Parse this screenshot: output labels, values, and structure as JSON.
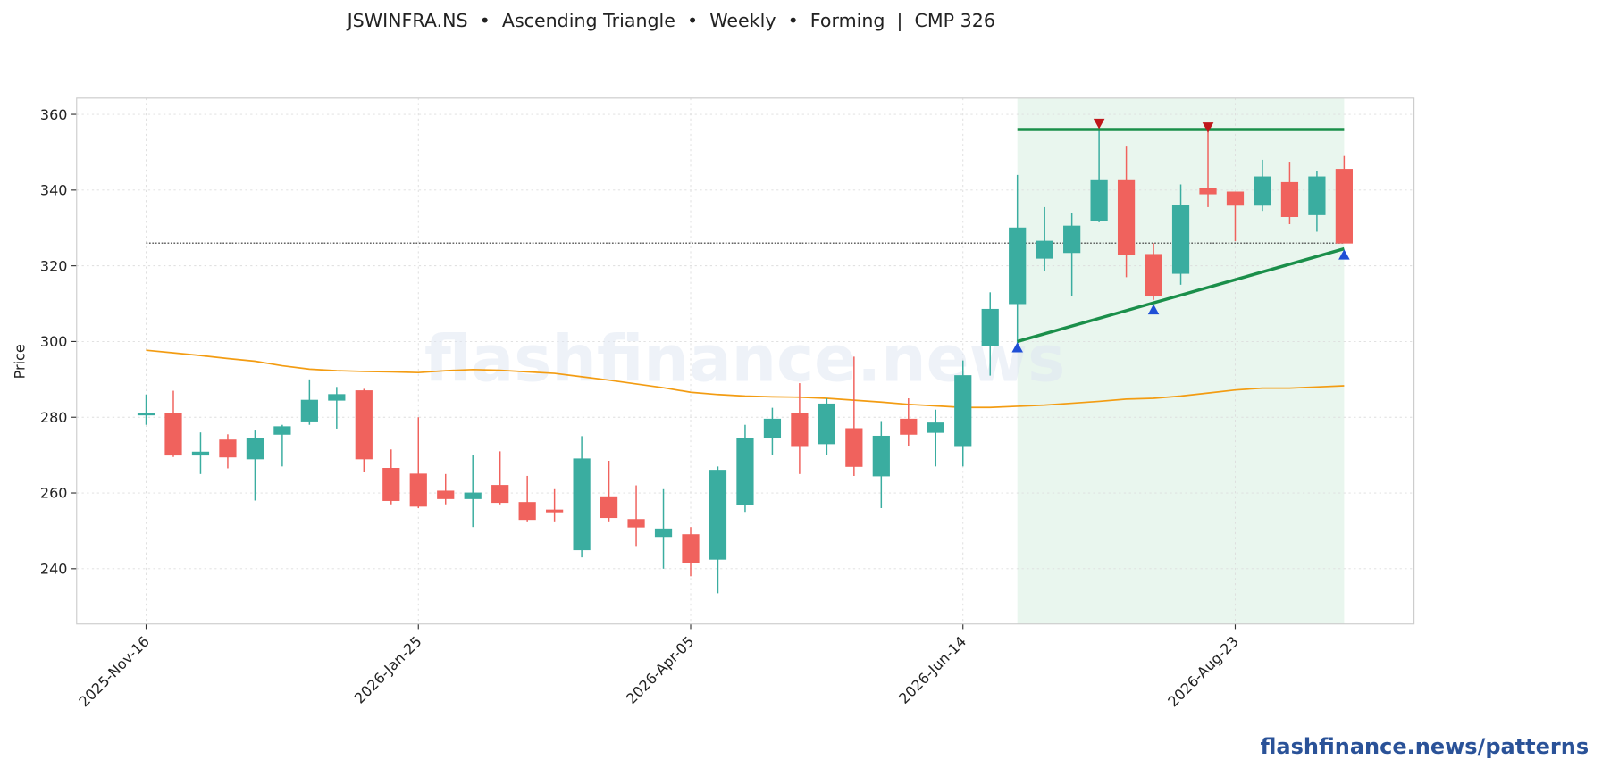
{
  "chart_data": {
    "type": "candlestick",
    "title": "JSWINFRA.NS  •  Ascending Triangle  •  Weekly  •  Forming  |  CMP 326",
    "ylabel": "Price",
    "watermark": "flashfinance.news",
    "footer": "flashfinance.news/patterns",
    "categories": [
      "2025-Nov-16",
      null,
      null,
      null,
      null,
      null,
      null,
      null,
      null,
      null,
      "2026-Jan-25",
      null,
      null,
      null,
      null,
      null,
      null,
      null,
      null,
      null,
      "2026-Apr-05",
      null,
      null,
      null,
      null,
      null,
      null,
      null,
      null,
      null,
      "2026-Jun-14",
      null,
      null,
      null,
      null,
      null,
      null,
      null,
      null,
      null,
      "2026-Aug-23",
      null,
      null,
      null,
      null
    ],
    "open": [
      280.6,
      281,
      270,
      274,
      269,
      275.5,
      279,
      284.5,
      287,
      266.5,
      265,
      260.5,
      258.5,
      262,
      257.5,
      255.5,
      245,
      259,
      253,
      248.5,
      249,
      242.5,
      257,
      274.5,
      281,
      273,
      277,
      264.5,
      279.5,
      276,
      272.5,
      299,
      310,
      322,
      323.5,
      332,
      342.5,
      323,
      318,
      340.5,
      339.5,
      336,
      342,
      333.5,
      345.5
    ],
    "high": [
      286,
      287,
      276,
      275.5,
      276.5,
      278,
      290,
      288,
      287.5,
      271.5,
      280,
      265,
      270,
      271,
      264.5,
      261,
      275,
      268.5,
      262,
      261,
      251,
      267,
      278,
      282.5,
      289,
      285,
      296,
      279,
      285,
      282,
      295,
      313,
      344,
      335.5,
      334,
      357,
      351.5,
      326,
      341.5,
      356,
      339.5,
      348,
      347.5,
      345,
      349
    ],
    "low": [
      278,
      269.5,
      265,
      266.5,
      258,
      267,
      278,
      277,
      265.5,
      257,
      256,
      257,
      251,
      257,
      252.5,
      252.5,
      243,
      252.5,
      246,
      240,
      238,
      233.5,
      255,
      270,
      265,
      270,
      264.5,
      256,
      272.5,
      267,
      267,
      291,
      299,
      318.5,
      312,
      331.5,
      317,
      311,
      315,
      335.5,
      326.5,
      334.5,
      331,
      329,
      326
    ],
    "close": [
      281,
      270,
      270.8,
      269.5,
      274.5,
      277.5,
      284.5,
      286,
      269,
      258,
      256.5,
      258.5,
      260,
      257.5,
      253,
      255,
      269,
      253.5,
      251,
      250.5,
      241.5,
      266,
      274.5,
      279.5,
      272.5,
      283.5,
      267,
      275,
      275.5,
      278.5,
      291,
      308.5,
      330,
      326.5,
      330.5,
      342.5,
      323,
      312,
      336,
      339,
      336,
      343.5,
      333,
      343.5,
      326
    ],
    "up_color": "#3aada0",
    "down_color": "#f0625d",
    "moving_average": {
      "color": "#f39c12",
      "values": [
        297.7,
        297,
        296.3,
        295.5,
        294.8,
        293.6,
        292.7,
        292.3,
        292.1,
        292,
        291.8,
        292.3,
        292.6,
        292.4,
        292,
        291.6,
        290.7,
        289.8,
        288.8,
        287.8,
        286.6,
        286,
        285.6,
        285.4,
        285.3,
        285,
        284.5,
        284,
        283.4,
        283,
        282.6,
        282.6,
        282.9,
        283.2,
        283.7,
        284.2,
        284.8,
        285,
        285.6,
        286.4,
        287.2,
        287.7,
        287.7,
        288,
        288.3
      ]
    },
    "cmp": 326,
    "pattern": {
      "start": 32,
      "end": 44,
      "color": "#e9f6ee",
      "line_color": "#1a8f4a"
    },
    "resistance": 356,
    "support": [
      300,
      324.5
    ],
    "peaks": [
      {
        "index": 35,
        "value": 357.5
      },
      {
        "index": 39,
        "value": 356.5
      }
    ],
    "troughs": [
      {
        "index": 32,
        "value": 298.5
      },
      {
        "index": 37,
        "value": 308.5
      },
      {
        "index": 44,
        "value": 323
      }
    ],
    "ylim": [
      225.4,
      364.3
    ],
    "yticks": [
      240,
      260,
      280,
      300,
      320,
      340,
      360
    ],
    "grid": true
  }
}
